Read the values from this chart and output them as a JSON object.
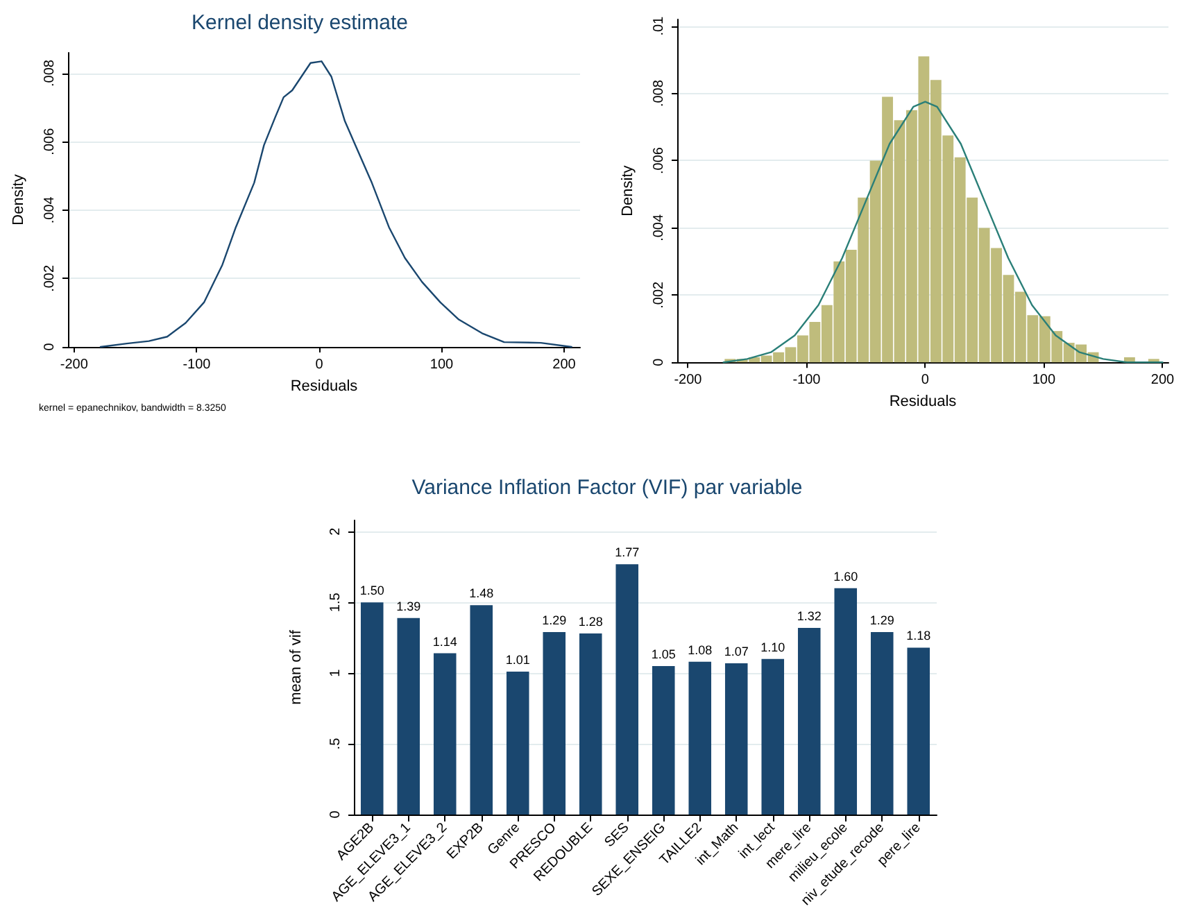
{
  "chart_data": [
    {
      "type": "line",
      "title": "Kernel density estimate",
      "xlabel": "Residuals",
      "ylabel": "Density",
      "x": [
        -178.4,
        -157,
        -139,
        -124,
        -109,
        -94,
        -79,
        -68,
        -53,
        -45,
        -36,
        -29,
        -22,
        -7,
        2,
        10,
        21,
        32,
        43,
        57,
        70,
        84,
        99,
        114,
        133,
        151,
        181,
        206
      ],
      "values": [
        0,
        0.0001,
        0.00017,
        0.0003,
        0.0007,
        0.0013,
        0.0024,
        0.0035,
        0.0048,
        0.0059,
        0.0067,
        0.0073,
        0.0075,
        0.0083,
        0.00835,
        0.0079,
        0.0066,
        0.0057,
        0.0048,
        0.0035,
        0.0026,
        0.0019,
        0.0013,
        0.0008,
        0.0004,
        0.00014,
        0.00012,
        0
      ],
      "color": "#1a476f",
      "marker": "none",
      "line_style": "solid",
      "grid": "y",
      "xlim": [
        -205,
        213
      ],
      "xticks": [
        -200,
        -100,
        0,
        100,
        200
      ],
      "ylim": [
        0,
        0.0086
      ],
      "yticks": [
        {
          "value": 0,
          "label": "0"
        },
        {
          "value": 0.002,
          "label": ".002"
        },
        {
          "value": 0.004,
          "label": ".004"
        },
        {
          "value": 0.006,
          "label": ".006"
        },
        {
          "value": 0.008,
          "label": ".008"
        }
      ],
      "annotations": [
        "kernel = epanechnikov, bandwidth = 8.3250"
      ]
    },
    {
      "type": "histogram",
      "xlabel": "Residuals",
      "ylabel": "Density",
      "grid": "y",
      "xlim": [
        -209,
        205
      ],
      "xticks": [
        -200,
        -100,
        0,
        100,
        200
      ],
      "ylim": [
        0,
        0.0102
      ],
      "yticks": [
        {
          "value": 0,
          "label": "0"
        },
        {
          "value": 0.002,
          "label": ".002"
        },
        {
          "value": 0.004,
          "label": ".004"
        },
        {
          "value": 0.006,
          "label": ".006"
        },
        {
          "value": 0.008,
          "label": ".008"
        },
        {
          "value": 0.01,
          "label": ".01"
        }
      ],
      "series": [
        {
          "type": "histogram",
          "color": "#bfbc7c",
          "bins": [
            -169.5,
            -159.3,
            -149.1,
            -138.9,
            -128.7,
            -118.5,
            -108.3,
            -98.1,
            -87.9,
            -77.7,
            -67.5,
            -57.3,
            -47.1,
            -36.9,
            -26.7,
            -16.5,
            -6.3,
            3.9,
            14.1,
            24.3,
            34.5,
            44.7,
            54.9,
            65.1,
            75.3,
            85.5,
            95.7,
            105.9,
            116.1,
            126.3,
            136.5,
            146.7,
            156.9,
            167.1,
            177.3,
            187.5,
            197.7
          ],
          "values": [
            0.0001,
            0.0001,
            0.00015,
            0.0002,
            0.0003,
            0.00045,
            0.0008,
            0.0012,
            0.0017,
            0.003,
            0.00335,
            0.0049,
            0.006,
            0.0079,
            0.0072,
            0.0075,
            0.0091,
            0.0084,
            0.00675,
            0.0061,
            0.0049,
            0.004,
            0.0034,
            0.0026,
            0.0021,
            0.0014,
            0.00137,
            0.00093,
            0.00058,
            0.00053,
            0.0003,
            0,
            0,
            0.00015,
            0,
            0.0001
          ]
        },
        {
          "type": "line",
          "color": "#2a7f78",
          "marker": "none",
          "line_style": "solid",
          "x": [
            -170,
            -150,
            -130,
            -110,
            -90,
            -70,
            -50,
            -30,
            -10,
            0,
            10,
            30,
            50,
            70,
            90,
            110,
            130,
            150,
            170,
            200
          ],
          "values": [
            0,
            0.0001,
            0.0003,
            0.0008,
            0.0017,
            0.0031,
            0.0048,
            0.0065,
            0.0076,
            0.00775,
            0.0076,
            0.0065,
            0.0048,
            0.0031,
            0.0017,
            0.0008,
            0.0003,
            0.0001,
            0,
            0
          ]
        }
      ]
    },
    {
      "type": "bar",
      "title": "Variance Inflation Factor (VIF) par variable",
      "ylabel": "mean of vif",
      "grid": "y",
      "color": "#1a476f",
      "categories": [
        "AGE2B",
        "AGE_ELEVE3_1",
        "AGE_ELEVE3_2",
        "EXP2B",
        "Genre",
        "PRESCO",
        "REDOUBLE",
        "SES",
        "SEXE_ENSEIG",
        "TAILLE2",
        "int_Math",
        "int_lect",
        "mere_lire",
        "milieu_ecole",
        "niv_etude_recode",
        "pere_lire"
      ],
      "values": [
        1.5,
        1.39,
        1.14,
        1.48,
        1.01,
        1.29,
        1.28,
        1.77,
        1.05,
        1.08,
        1.07,
        1.1,
        1.32,
        1.6,
        1.29,
        1.18
      ],
      "value_labels": [
        "1.50",
        "1.39",
        "1.14",
        "1.48",
        "1.01",
        "1.29",
        "1.28",
        "1.77",
        "1.05",
        "1.08",
        "1.07",
        "1.10",
        "1.32",
        "1.60",
        "1.29",
        "1.18"
      ],
      "ylim": [
        0,
        2.08
      ],
      "yticks": [
        {
          "value": 0,
          "label": "0"
        },
        {
          "value": 0.5,
          "label": ".5"
        },
        {
          "value": 1,
          "label": "1"
        },
        {
          "value": 1.5,
          "label": "1.5"
        },
        {
          "value": 2,
          "label": "2"
        }
      ]
    }
  ]
}
